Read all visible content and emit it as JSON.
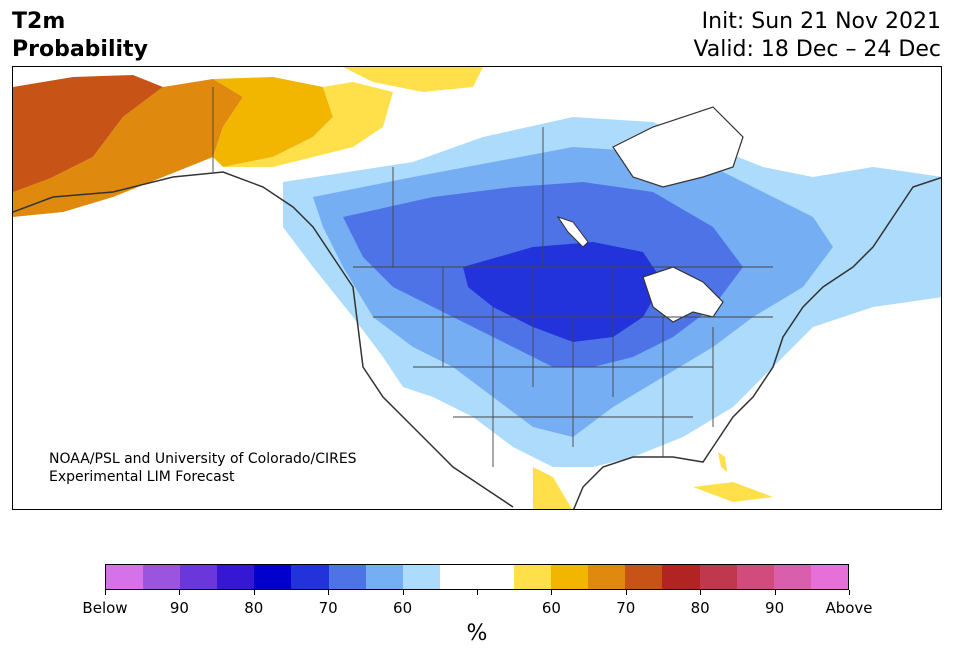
{
  "header": {
    "variable": "T2m",
    "product": "Probability",
    "init": "Init: Sun 21 Nov 2021",
    "valid": "Valid: 18 Dec – 24 Dec"
  },
  "credit": {
    "line1": "NOAA/PSL and University of Colorado/CIRES",
    "line2": "Experimental LIM Forecast"
  },
  "colorbar": {
    "colors": [
      "#d572ea",
      "#9b54de",
      "#6b37db",
      "#3517d4",
      "#0200cc",
      "#2233db",
      "#4e73e7",
      "#76aef4",
      "#acdbfc",
      "#ffffff",
      "#ffffff",
      "#ffe04a",
      "#f2b500",
      "#df890e",
      "#c85316",
      "#b22424",
      "#c0384e",
      "#d14c7c",
      "#d95fad",
      "#e670d8"
    ],
    "labels": [
      "Below",
      "90",
      "80",
      "70",
      "60",
      "",
      "60",
      "70",
      "80",
      "90",
      "Above"
    ],
    "units": "%"
  },
  "map_colors": {
    "land": "#ffffff",
    "border": "#333333",
    "blue_60": "#acdbfc",
    "blue_70": "#76aef4",
    "blue_80": "#4e73e7",
    "blue_90": "#2233db",
    "yellow_60": "#ffe04a",
    "orange_70": "#f2b500",
    "orange_80": "#df890e",
    "red_90": "#c85316"
  }
}
